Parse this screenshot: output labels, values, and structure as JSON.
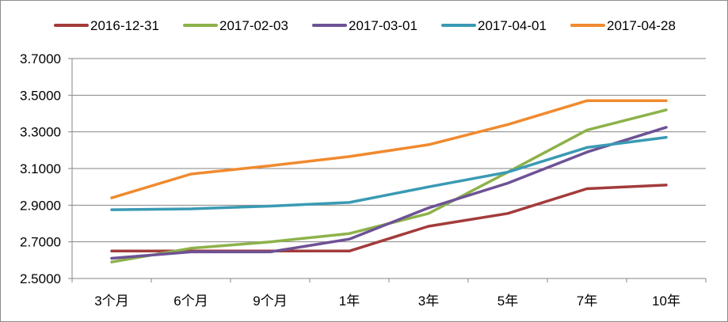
{
  "chart_data": {
    "type": "line",
    "title": "",
    "xlabel": "",
    "ylabel": "",
    "categories": [
      "3个月",
      "6个月",
      "9个月",
      "1年",
      "3年",
      "5年",
      "7年",
      "10年"
    ],
    "ylim": [
      2.5,
      3.7
    ],
    "yticks": [
      "2.5000",
      "2.7000",
      "2.9000",
      "3.1000",
      "3.3000",
      "3.5000",
      "3.7000"
    ],
    "grid": true,
    "legend_position": "top",
    "series": [
      {
        "name": "2016-12-31",
        "color": "#a33b3b",
        "values": [
          2.65,
          2.65,
          2.65,
          2.65,
          2.785,
          2.855,
          2.99,
          3.01
        ]
      },
      {
        "name": "2017-02-03",
        "color": "#8db24a",
        "values": [
          2.59,
          2.665,
          2.7,
          2.745,
          2.855,
          3.08,
          3.31,
          3.42
        ]
      },
      {
        "name": "2017-03-01",
        "color": "#6e5295",
        "values": [
          2.61,
          2.645,
          2.645,
          2.715,
          2.885,
          3.02,
          3.19,
          3.325
        ]
      },
      {
        "name": "2017-04-01",
        "color": "#3a9ab4",
        "values": [
          2.875,
          2.88,
          2.895,
          2.915,
          3.0,
          3.08,
          3.215,
          3.27
        ]
      },
      {
        "name": "2017-04-28",
        "color": "#f08a2f",
        "values": [
          2.94,
          3.07,
          3.115,
          3.165,
          3.23,
          3.34,
          3.47,
          3.47
        ]
      }
    ]
  }
}
